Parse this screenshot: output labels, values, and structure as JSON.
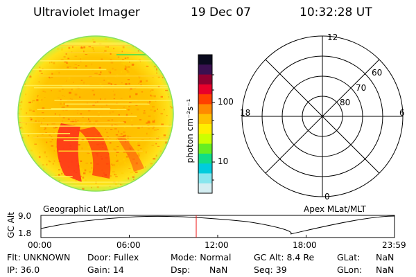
{
  "header": {
    "instrument": "Ultraviolet Imager",
    "date": "19 Dec 07",
    "time": "10:32:28 UT"
  },
  "colorbar": {
    "unit_label": "photon cm⁻²s⁻¹",
    "tick_100": "100",
    "tick_10": "10",
    "colors": [
      "#0a0a1e",
      "#3a1050",
      "#900030",
      "#e8002a",
      "#ff4000",
      "#ff8a00",
      "#ffc000",
      "#ffee00",
      "#ccff00",
      "#66ee22",
      "#11dd88",
      "#00ccdd",
      "#88e6ee",
      "#d4eef2"
    ]
  },
  "image_panel": {
    "label": "Geographic Lat/Lon"
  },
  "polar_panel": {
    "label": "Apex MLat/MLT",
    "mlt_top": "12",
    "mlt_bottom": "0",
    "mlt_left": "18",
    "mlt_right": "6",
    "ring_60": "60",
    "ring_70": "70",
    "ring_80": "80"
  },
  "altitude_plot": {
    "ylabel": "GC Alt",
    "y_max_label": "9.0",
    "y_min_label": "1.8",
    "x_ticks": [
      "00:00",
      "06:00",
      "12:00",
      "18:00",
      "23:59"
    ],
    "current_time_hours": 10.54
  },
  "info": {
    "flt": "Flt: UNKNOWN",
    "door": "Door: Fullex",
    "mode": "Mode: Normal",
    "gcalt": "GC Alt: 8.4 Re",
    "glat_label": "GLat:",
    "glat_value": "NaN",
    "ip": "IP: 36.0",
    "gain": "Gain: 14",
    "dsp_label": "Dsp:",
    "dsp_value": "NaN",
    "seq": "Seq: 39",
    "glon_label": "GLon:",
    "glon_value": "NaN"
  }
}
